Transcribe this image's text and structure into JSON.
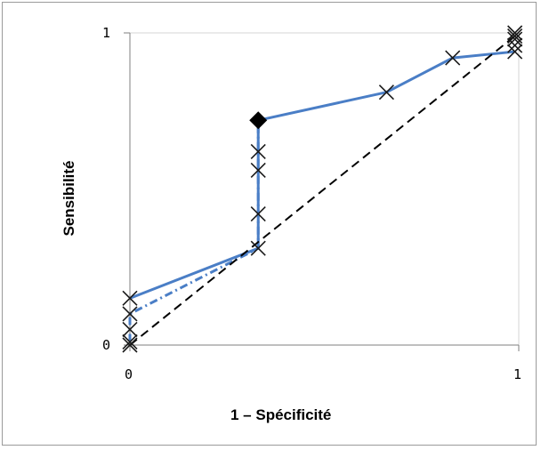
{
  "chart_data": {
    "type": "line",
    "title": "",
    "xlabel": "1 – Spécificité",
    "ylabel": "Sensibilité",
    "xlim": [
      0,
      1
    ],
    "ylim": [
      0,
      1
    ],
    "x_ticks": [
      "0",
      "1"
    ],
    "y_ticks": [
      "0",
      "1"
    ],
    "grid": false,
    "series": [
      {
        "style": "solid",
        "color": "#4a7ec6",
        "points": [
          [
            0,
            0.15
          ],
          [
            0.33,
            0.31
          ],
          [
            0.33,
            0.72
          ],
          [
            0.66,
            0.81
          ],
          [
            0.83,
            0.92
          ],
          [
            0.99,
            0.94
          ]
        ]
      },
      {
        "style": "dash-dot",
        "color": "#4a7ec6",
        "points": [
          [
            0,
            0.01
          ],
          [
            0,
            0.06
          ],
          [
            0,
            0.1
          ],
          [
            0.33,
            0.31
          ],
          [
            0.33,
            0.42
          ],
          [
            0.33,
            0.56
          ],
          [
            0.33,
            0.62
          ],
          [
            0.33,
            0.7
          ]
        ]
      },
      {
        "style": "dashed",
        "color": "#000000",
        "points": [
          [
            0,
            0
          ],
          [
            1,
            1
          ]
        ]
      }
    ],
    "markers": {
      "x_marks": [
        [
          0,
          0
        ],
        [
          0,
          0.01
        ],
        [
          0,
          0.05
        ],
        [
          0,
          0.1
        ],
        [
          0,
          0.15
        ],
        [
          0.33,
          0.31
        ],
        [
          0.33,
          0.42
        ],
        [
          0.33,
          0.56
        ],
        [
          0.33,
          0.62
        ],
        [
          0.66,
          0.81
        ],
        [
          0.83,
          0.92
        ],
        [
          0.99,
          0.94
        ],
        [
          0.99,
          0.96
        ],
        [
          0.99,
          0.98
        ],
        [
          0.99,
          0.99
        ],
        [
          0.99,
          1.0
        ]
      ],
      "diamond": [
        0.33,
        0.72
      ]
    }
  }
}
